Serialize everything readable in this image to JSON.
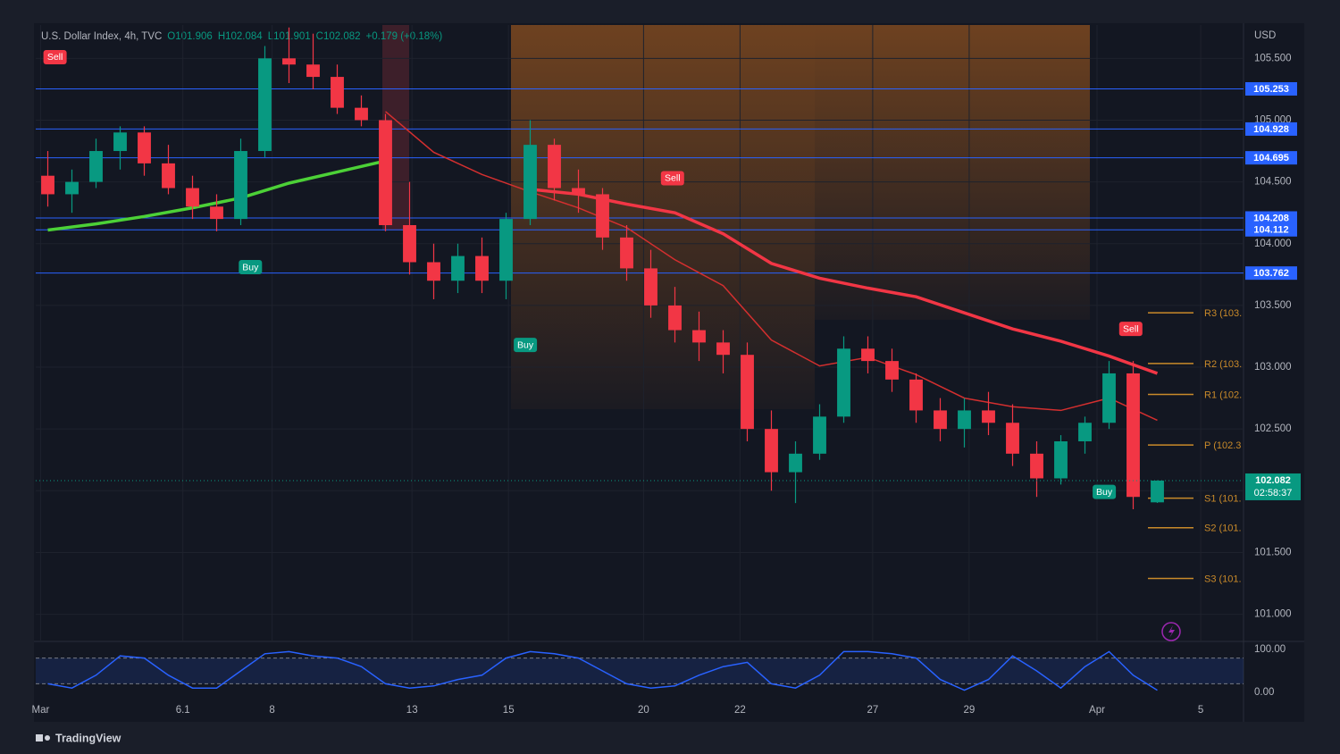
{
  "chart_data": {
    "type": "candlestick",
    "title": "U.S. Dollar Index, 4h, TVC",
    "header_values": [
      "O101.906",
      "H102.084",
      "L101.901",
      "C102.082",
      "+0.179 (+0.18%)"
    ],
    "currency": "USD",
    "x": [
      0.5,
      1.5,
      2.5,
      3.5,
      4.5,
      5.5,
      6.5,
      7.5,
      8.5,
      9.5,
      10.5,
      11.5,
      12.5,
      13.5,
      14.5,
      15.5,
      16.5,
      17.5,
      18.5,
      19.5,
      20.5,
      21.5,
      22.5,
      23.5,
      24.5,
      25.5,
      26.5,
      27.5,
      28.5,
      29.5,
      30.5,
      31.5,
      32.5,
      33.5,
      34.5,
      35.5,
      36.5,
      37.5,
      38.5,
      39.5,
      40.5,
      41.5,
      42.5,
      43.5,
      44.5,
      45.5,
      46.5
    ],
    "open": [
      104.55,
      104.4,
      104.5,
      104.75,
      104.9,
      104.65,
      104.45,
      104.3,
      104.2,
      104.75,
      105.5,
      105.45,
      105.35,
      105.1,
      105.0,
      104.15,
      103.85,
      103.7,
      103.9,
      103.7,
      104.2,
      104.8,
      104.45,
      104.4,
      104.05,
      103.8,
      103.5,
      103.3,
      103.2,
      103.1,
      102.5,
      102.15,
      102.3,
      102.6,
      103.15,
      103.05,
      102.9,
      102.65,
      102.5,
      102.65,
      102.55,
      102.3,
      102.1,
      102.4,
      102.55,
      102.95,
      101.906
    ],
    "high": [
      104.75,
      104.6,
      104.85,
      104.95,
      104.95,
      104.8,
      104.55,
      104.4,
      104.85,
      105.6,
      105.75,
      105.7,
      105.45,
      105.2,
      105.05,
      104.5,
      104.0,
      104.0,
      104.05,
      104.25,
      105.0,
      104.85,
      104.6,
      104.45,
      104.15,
      103.95,
      103.65,
      103.45,
      103.3,
      103.2,
      102.65,
      102.4,
      102.7,
      103.25,
      103.25,
      103.15,
      102.95,
      102.75,
      102.75,
      102.8,
      102.7,
      102.4,
      102.45,
      102.6,
      103.05,
      103.05,
      102.084
    ],
    "low": [
      104.3,
      104.25,
      104.45,
      104.6,
      104.55,
      104.4,
      104.2,
      104.1,
      104.15,
      104.7,
      105.3,
      105.25,
      105.05,
      104.95,
      104.1,
      103.75,
      103.55,
      103.6,
      103.6,
      103.55,
      104.15,
      104.35,
      104.25,
      103.95,
      103.7,
      103.4,
      103.2,
      103.05,
      102.95,
      102.4,
      102.0,
      101.9,
      102.25,
      102.55,
      102.95,
      102.8,
      102.55,
      102.4,
      102.35,
      102.45,
      102.2,
      101.95,
      102.05,
      102.3,
      102.5,
      101.85,
      101.901
    ],
    "close": [
      104.4,
      104.5,
      104.75,
      104.9,
      104.65,
      104.45,
      104.3,
      104.2,
      104.75,
      105.5,
      105.45,
      105.35,
      105.1,
      105.0,
      104.15,
      103.85,
      103.7,
      103.9,
      103.7,
      104.2,
      104.8,
      104.45,
      104.4,
      104.05,
      103.8,
      103.5,
      103.3,
      103.2,
      103.1,
      102.5,
      102.15,
      102.3,
      102.6,
      103.15,
      103.05,
      102.9,
      102.65,
      102.5,
      102.65,
      102.55,
      102.3,
      102.1,
      102.4,
      102.55,
      102.95,
      101.95,
      102.082
    ],
    "up_color": "#089981",
    "down_color": "#f23645",
    "xlim": [
      0,
      50
    ],
    "xticks": [
      {
        "value": 0.2,
        "label": "Mar"
      },
      6.1,
      {
        "value": 9.8,
        "label": "8"
      },
      {
        "value": 15.6,
        "label": "13"
      },
      {
        "value": 19.6,
        "label": "15"
      },
      {
        "value": 25.2,
        "label": "20"
      },
      {
        "value": 29.2,
        "label": "22"
      },
      {
        "value": 34.7,
        "label": "27"
      },
      {
        "value": 38.7,
        "label": "29"
      },
      {
        "value": 44,
        "label": "Apr"
      },
      {
        "value": 48.3,
        "label": "5"
      }
    ],
    "ylim": [
      100.78,
      105.77
    ],
    "yticks": [
      {
        "value": 101,
        "label": "101.000"
      },
      {
        "value": 101.5,
        "label": "101.500"
      },
      {
        "value": 102,
        "label": "102.000"
      },
      {
        "value": 102.5,
        "label": "102.500"
      },
      {
        "value": 103,
        "label": "103.000"
      },
      {
        "value": 103.5,
        "label": "103.500"
      },
      {
        "value": 104,
        "label": "104.000"
      },
      {
        "value": 104.5,
        "label": "104.500"
      },
      {
        "value": 105,
        "label": "105.000"
      },
      {
        "value": 105.5,
        "label": "105.500"
      }
    ],
    "moving_averages": [
      {
        "color": "#f23645",
        "width": 3.5,
        "x": [
          20.5,
          22.5,
          24.5,
          26.5,
          28.5,
          30.5,
          32.5,
          34.5,
          36.5,
          38.5,
          40.5,
          42.5,
          44.5,
          46.5
        ],
        "values": [
          104.44,
          104.4,
          104.32,
          104.25,
          104.08,
          103.84,
          103.72,
          103.64,
          103.57,
          103.44,
          103.31,
          103.21,
          103.09,
          102.95
        ]
      },
      {
        "color": "#d32f2f",
        "width": 1.5,
        "x": [
          14.5,
          16.5,
          18.5,
          20.5,
          22.5,
          24.5,
          26.5,
          28.5,
          30.5,
          32.5,
          34.5,
          36.5,
          38.5,
          40.5,
          42.5,
          44.5,
          46.5
        ],
        "values": [
          105.07,
          104.74,
          104.56,
          104.42,
          104.29,
          104.13,
          103.87,
          103.66,
          103.22,
          103.01,
          103.08,
          102.94,
          102.75,
          102.68,
          102.65,
          102.75,
          102.57
        ]
      },
      {
        "color": "#4cd137",
        "width": 3.5,
        "x": [
          0.5,
          2.5,
          4.5,
          6.5,
          8.5,
          10.5,
          12.5,
          14.5
        ],
        "values": [
          104.11,
          104.16,
          104.22,
          104.29,
          104.37,
          104.49,
          104.58,
          104.67
        ]
      }
    ],
    "levels": {
      "color": "#2962ff",
      "values": [
        105.253,
        104.928,
        104.695,
        104.208,
        104.112,
        103.762
      ]
    },
    "pivots": {
      "color": "#c98a2a",
      "labels": [
        "R3 (103.",
        "R2 (103.",
        "R1 (102.",
        "P (102.3",
        "S1 (101.",
        "S2 (101.",
        "S3 (101."
      ],
      "values": [
        103.44,
        103.03,
        102.78,
        102.37,
        101.94,
        101.7,
        101.29
      ]
    },
    "signals": [
      {
        "text": "Sell",
        "x": 0.8,
        "value": 105.51,
        "color": "#f23645"
      },
      {
        "text": "Buy",
        "x": 8.9,
        "value": 103.81,
        "color": "#089981"
      },
      {
        "text": "Buy",
        "x": 20.3,
        "value": 103.18,
        "color": "#089981"
      },
      {
        "text": "Sell",
        "x": 26.4,
        "value": 104.53,
        "color": "#f23645"
      },
      {
        "text": "Buy",
        "x": 44.3,
        "value": 101.99,
        "color": "#089981"
      },
      {
        "text": "Sell",
        "x": 45.4,
        "value": 103.31,
        "color": "#f23645"
      }
    ],
    "last_price": {
      "value": 102.082,
      "countdown": "02:58:37",
      "color": "#089981"
    },
    "oscillator": {
      "ylim": [
        0,
        100
      ],
      "yticks": [
        {
          "value": 100,
          "label": "100.00"
        },
        {
          "value": 0,
          "label": "0.00"
        }
      ],
      "bands": [
        80,
        20
      ],
      "color": "#2962ff",
      "values": [
        20,
        10,
        40,
        85,
        80,
        40,
        10,
        10,
        50,
        90,
        95,
        85,
        80,
        60,
        20,
        10,
        15,
        30,
        40,
        80,
        95,
        90,
        80,
        50,
        20,
        10,
        15,
        40,
        60,
        70,
        20,
        10,
        40,
        95,
        95,
        90,
        80,
        30,
        5,
        30,
        85,
        50,
        10,
        60,
        95,
        40,
        5
      ]
    }
  },
  "footer": "TradingView"
}
